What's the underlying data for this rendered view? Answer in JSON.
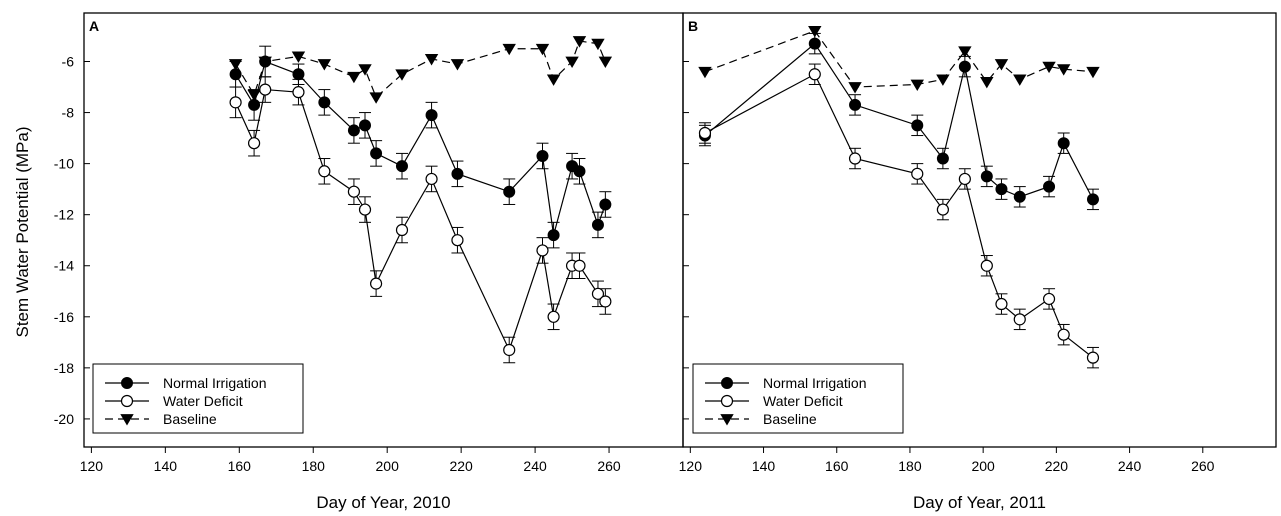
{
  "figure": {
    "ylabel": "Stem Water Potential (MPa)"
  },
  "colors": {
    "line": "#000000",
    "filled_marker": "#000000",
    "open_marker_fill": "#ffffff",
    "background": "#ffffff"
  },
  "chart_data": [
    {
      "type": "line",
      "panel_label": "A",
      "xlabel": "Day of Year, 2010",
      "ylabel": "Stem Water Potential (MPa)",
      "xlim": [
        118,
        280
      ],
      "ylim": [
        -21.1,
        -4.1
      ],
      "xticks": [
        120,
        140,
        160,
        180,
        200,
        220,
        240,
        260
      ],
      "yticks": [
        -20,
        -18,
        -16,
        -14,
        -12,
        -10,
        -8,
        -6
      ],
      "legend_position": "bottom-left",
      "grid": false,
      "series": [
        {
          "name": "Normal Irrigation",
          "marker": "filled-circle",
          "line": "solid",
          "x": [
            159,
            164,
            167,
            176,
            183,
            191,
            194,
            197,
            204,
            212,
            219,
            233,
            242,
            245,
            250,
            252,
            257,
            259
          ],
          "y": [
            -6.5,
            -7.7,
            -6.0,
            -6.5,
            -7.6,
            -8.7,
            -8.5,
            -9.6,
            -10.1,
            -8.1,
            -10.4,
            -11.1,
            -9.7,
            -12.8,
            -10.1,
            -10.3,
            -12.4,
            -11.6
          ],
          "err": [
            0.5,
            0.6,
            0.6,
            0.4,
            0.5,
            0.5,
            0.5,
            0.5,
            0.5,
            0.5,
            0.5,
            0.5,
            0.5,
            0.5,
            0.5,
            0.5,
            0.5,
            0.5
          ]
        },
        {
          "name": "Water Deficit",
          "marker": "open-circle",
          "line": "solid",
          "x": [
            159,
            164,
            167,
            176,
            183,
            191,
            194,
            197,
            204,
            212,
            219,
            233,
            242,
            245,
            250,
            252,
            257,
            259
          ],
          "y": [
            -7.6,
            -9.2,
            -7.1,
            -7.2,
            -10.3,
            -11.1,
            -11.8,
            -14.7,
            -12.6,
            -10.6,
            -13.0,
            -17.3,
            -13.4,
            -16.0,
            -14.0,
            -14.0,
            -15.1,
            -15.4
          ],
          "err": [
            0.6,
            0.5,
            0.5,
            0.5,
            0.5,
            0.5,
            0.5,
            0.5,
            0.5,
            0.5,
            0.5,
            0.5,
            0.5,
            0.5,
            0.5,
            0.5,
            0.5,
            0.5
          ]
        },
        {
          "name": "Baseline",
          "marker": "filled-triangle-down",
          "line": "dashed",
          "x": [
            159,
            164,
            167,
            176,
            183,
            191,
            194,
            197,
            204,
            212,
            219,
            233,
            242,
            245,
            250,
            252,
            257,
            259
          ],
          "y": [
            -6.1,
            -7.3,
            -6.0,
            -5.8,
            -6.1,
            -6.6,
            -6.3,
            -7.4,
            -6.5,
            -5.9,
            -6.1,
            -5.5,
            -5.5,
            -6.7,
            -6.0,
            -5.2,
            -5.3,
            -6.0
          ]
        }
      ]
    },
    {
      "type": "line",
      "panel_label": "B",
      "xlabel": "Day of Year, 2011",
      "ylabel": "",
      "xlim": [
        118,
        280
      ],
      "ylim": [
        -21.1,
        -4.1
      ],
      "xticks": [
        120,
        140,
        160,
        180,
        200,
        220,
        240,
        260
      ],
      "yticks": [
        -20,
        -18,
        -16,
        -14,
        -12,
        -10,
        -8,
        -6
      ],
      "legend_position": "bottom-left",
      "grid": false,
      "series": [
        {
          "name": "Normal Irrigation",
          "marker": "filled-circle",
          "line": "solid",
          "x": [
            124,
            154,
            165,
            182,
            189,
            195,
            201,
            205,
            210,
            218,
            222,
            230
          ],
          "y": [
            -8.9,
            -5.3,
            -7.7,
            -8.5,
            -9.8,
            -6.2,
            -10.5,
            -11.0,
            -11.3,
            -10.9,
            -9.2,
            -11.4
          ],
          "err": [
            0.4,
            0.4,
            0.4,
            0.4,
            0.4,
            0.4,
            0.4,
            0.4,
            0.4,
            0.4,
            0.4,
            0.4
          ]
        },
        {
          "name": "Water Deficit",
          "marker": "open-circle",
          "line": "solid",
          "x": [
            124,
            154,
            165,
            182,
            189,
            195,
            201,
            205,
            210,
            218,
            222,
            230
          ],
          "y": [
            -8.8,
            -6.5,
            -9.8,
            -10.4,
            -11.8,
            -10.6,
            -14.0,
            -15.5,
            -16.1,
            -15.3,
            -16.7,
            -17.6
          ],
          "err": [
            0.4,
            0.4,
            0.4,
            0.4,
            0.4,
            0.4,
            0.4,
            0.4,
            0.4,
            0.4,
            0.4,
            0.4
          ]
        },
        {
          "name": "Baseline",
          "marker": "filled-triangle-down",
          "line": "dashed",
          "x": [
            124,
            154,
            165,
            182,
            189,
            195,
            201,
            205,
            210,
            218,
            222,
            230
          ],
          "y": [
            -6.4,
            -4.8,
            -7.0,
            -6.9,
            -6.7,
            -5.6,
            -6.8,
            -6.1,
            -6.7,
            -6.2,
            -6.3,
            -6.4
          ]
        }
      ]
    }
  ]
}
